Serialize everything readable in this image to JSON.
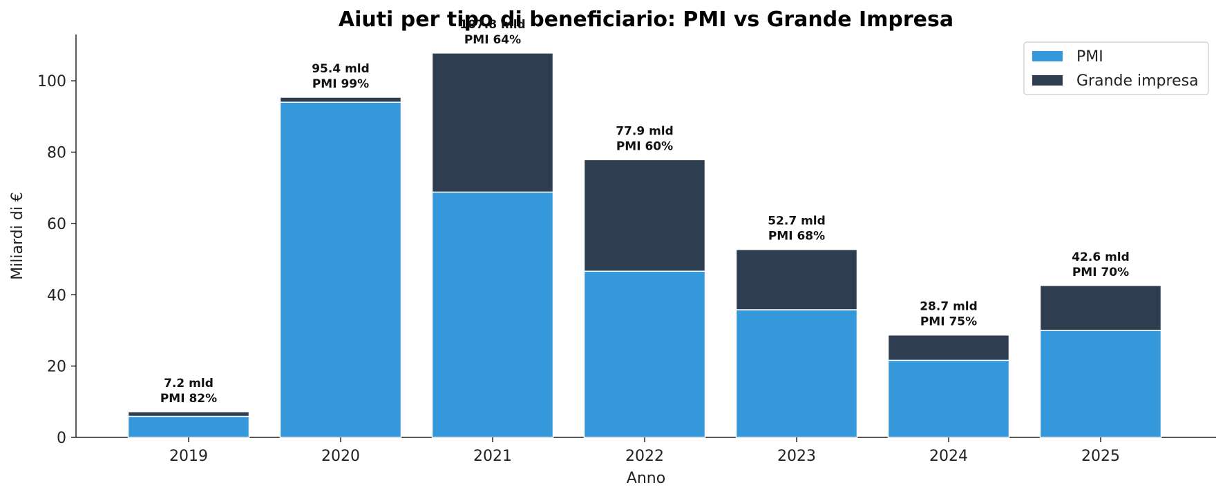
{
  "chart_data": {
    "type": "bar",
    "stacked": true,
    "title": "Aiuti per tipo di beneficiario: PMI vs Grande Impresa",
    "xlabel": "Anno",
    "ylabel": "Miliardi di €",
    "ylim": [
      0,
      113
    ],
    "yticks": [
      0,
      20,
      40,
      60,
      80,
      100
    ],
    "grid": false,
    "legend_position": "top-right",
    "categories": [
      "2019",
      "2020",
      "2021",
      "2022",
      "2023",
      "2024",
      "2025"
    ],
    "series": [
      {
        "name": "PMI",
        "color": "#3498db",
        "values": [
          5.9,
          94.0,
          68.8,
          46.6,
          35.8,
          21.6,
          30.0
        ]
      },
      {
        "name": "Grande impresa",
        "color": "#2e3e50",
        "values": [
          1.3,
          1.4,
          39.0,
          31.3,
          16.9,
          7.1,
          12.6
        ]
      }
    ],
    "annotations": [
      [
        "7.2 mld",
        "PMI 82%"
      ],
      [
        "95.4 mld",
        "PMI 99%"
      ],
      [
        "107.8 mld",
        "PMI 64%"
      ],
      [
        "77.9 mld",
        "PMI 60%"
      ],
      [
        "52.7 mld",
        "PMI 68%"
      ],
      [
        "28.7 mld",
        "PMI 75%"
      ],
      [
        "42.6 mld",
        "PMI 70%"
      ]
    ]
  }
}
